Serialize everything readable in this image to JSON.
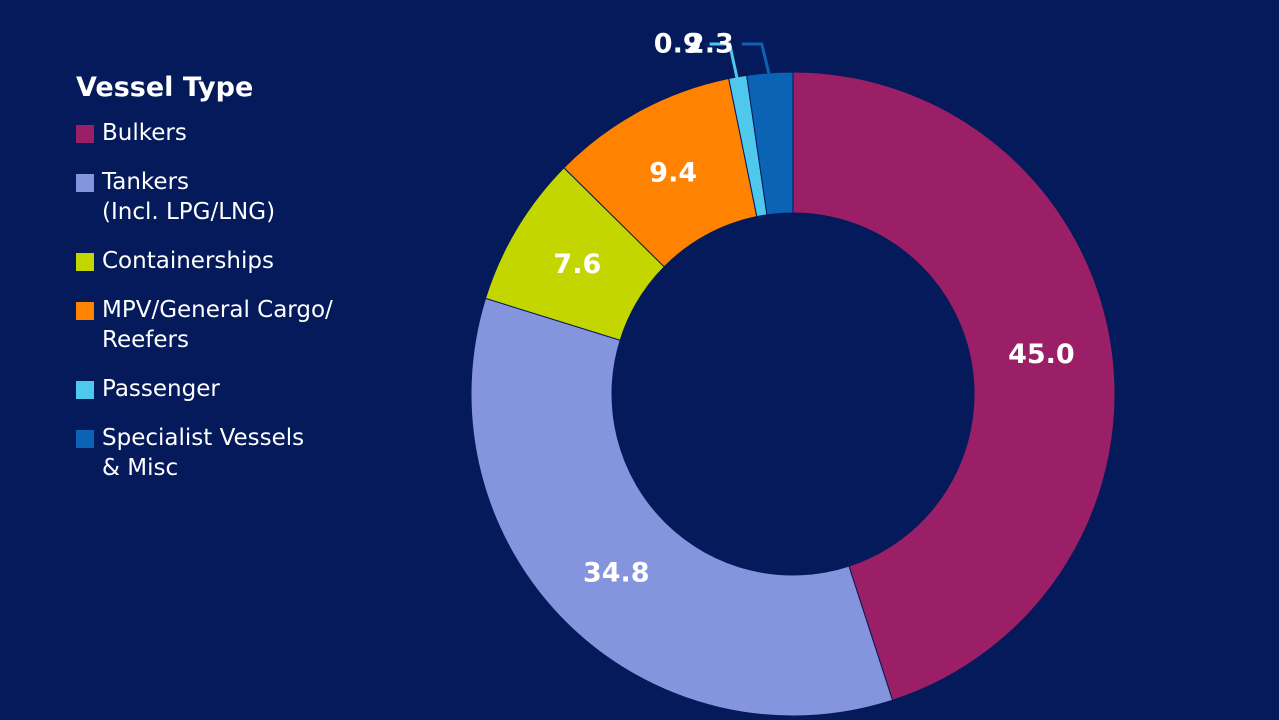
{
  "legend": {
    "title": "Vessel Type"
  },
  "chart_data": {
    "type": "pie",
    "subtype": "donut",
    "legend_title": "Vessel Type",
    "legend_position": "left",
    "categories": [
      "Bulkers",
      "Tankers\n(Incl. LPG/LNG)",
      "Containerships",
      "MPV/General Cargo/\nReefers",
      "Passenger",
      "Specialist Vessels\n& Misc"
    ],
    "values": [
      45.0,
      34.8,
      7.6,
      9.4,
      0.9,
      2.3
    ],
    "value_labels": [
      "45.0",
      "34.8",
      "7.6",
      "9.4",
      "0.9",
      "2.3"
    ],
    "colors": [
      "#9a1f66",
      "#8495de",
      "#c3d600",
      "#ff8200",
      "#4fc8ee",
      "#0a63b4"
    ],
    "slice_order": "clockwise from top"
  }
}
